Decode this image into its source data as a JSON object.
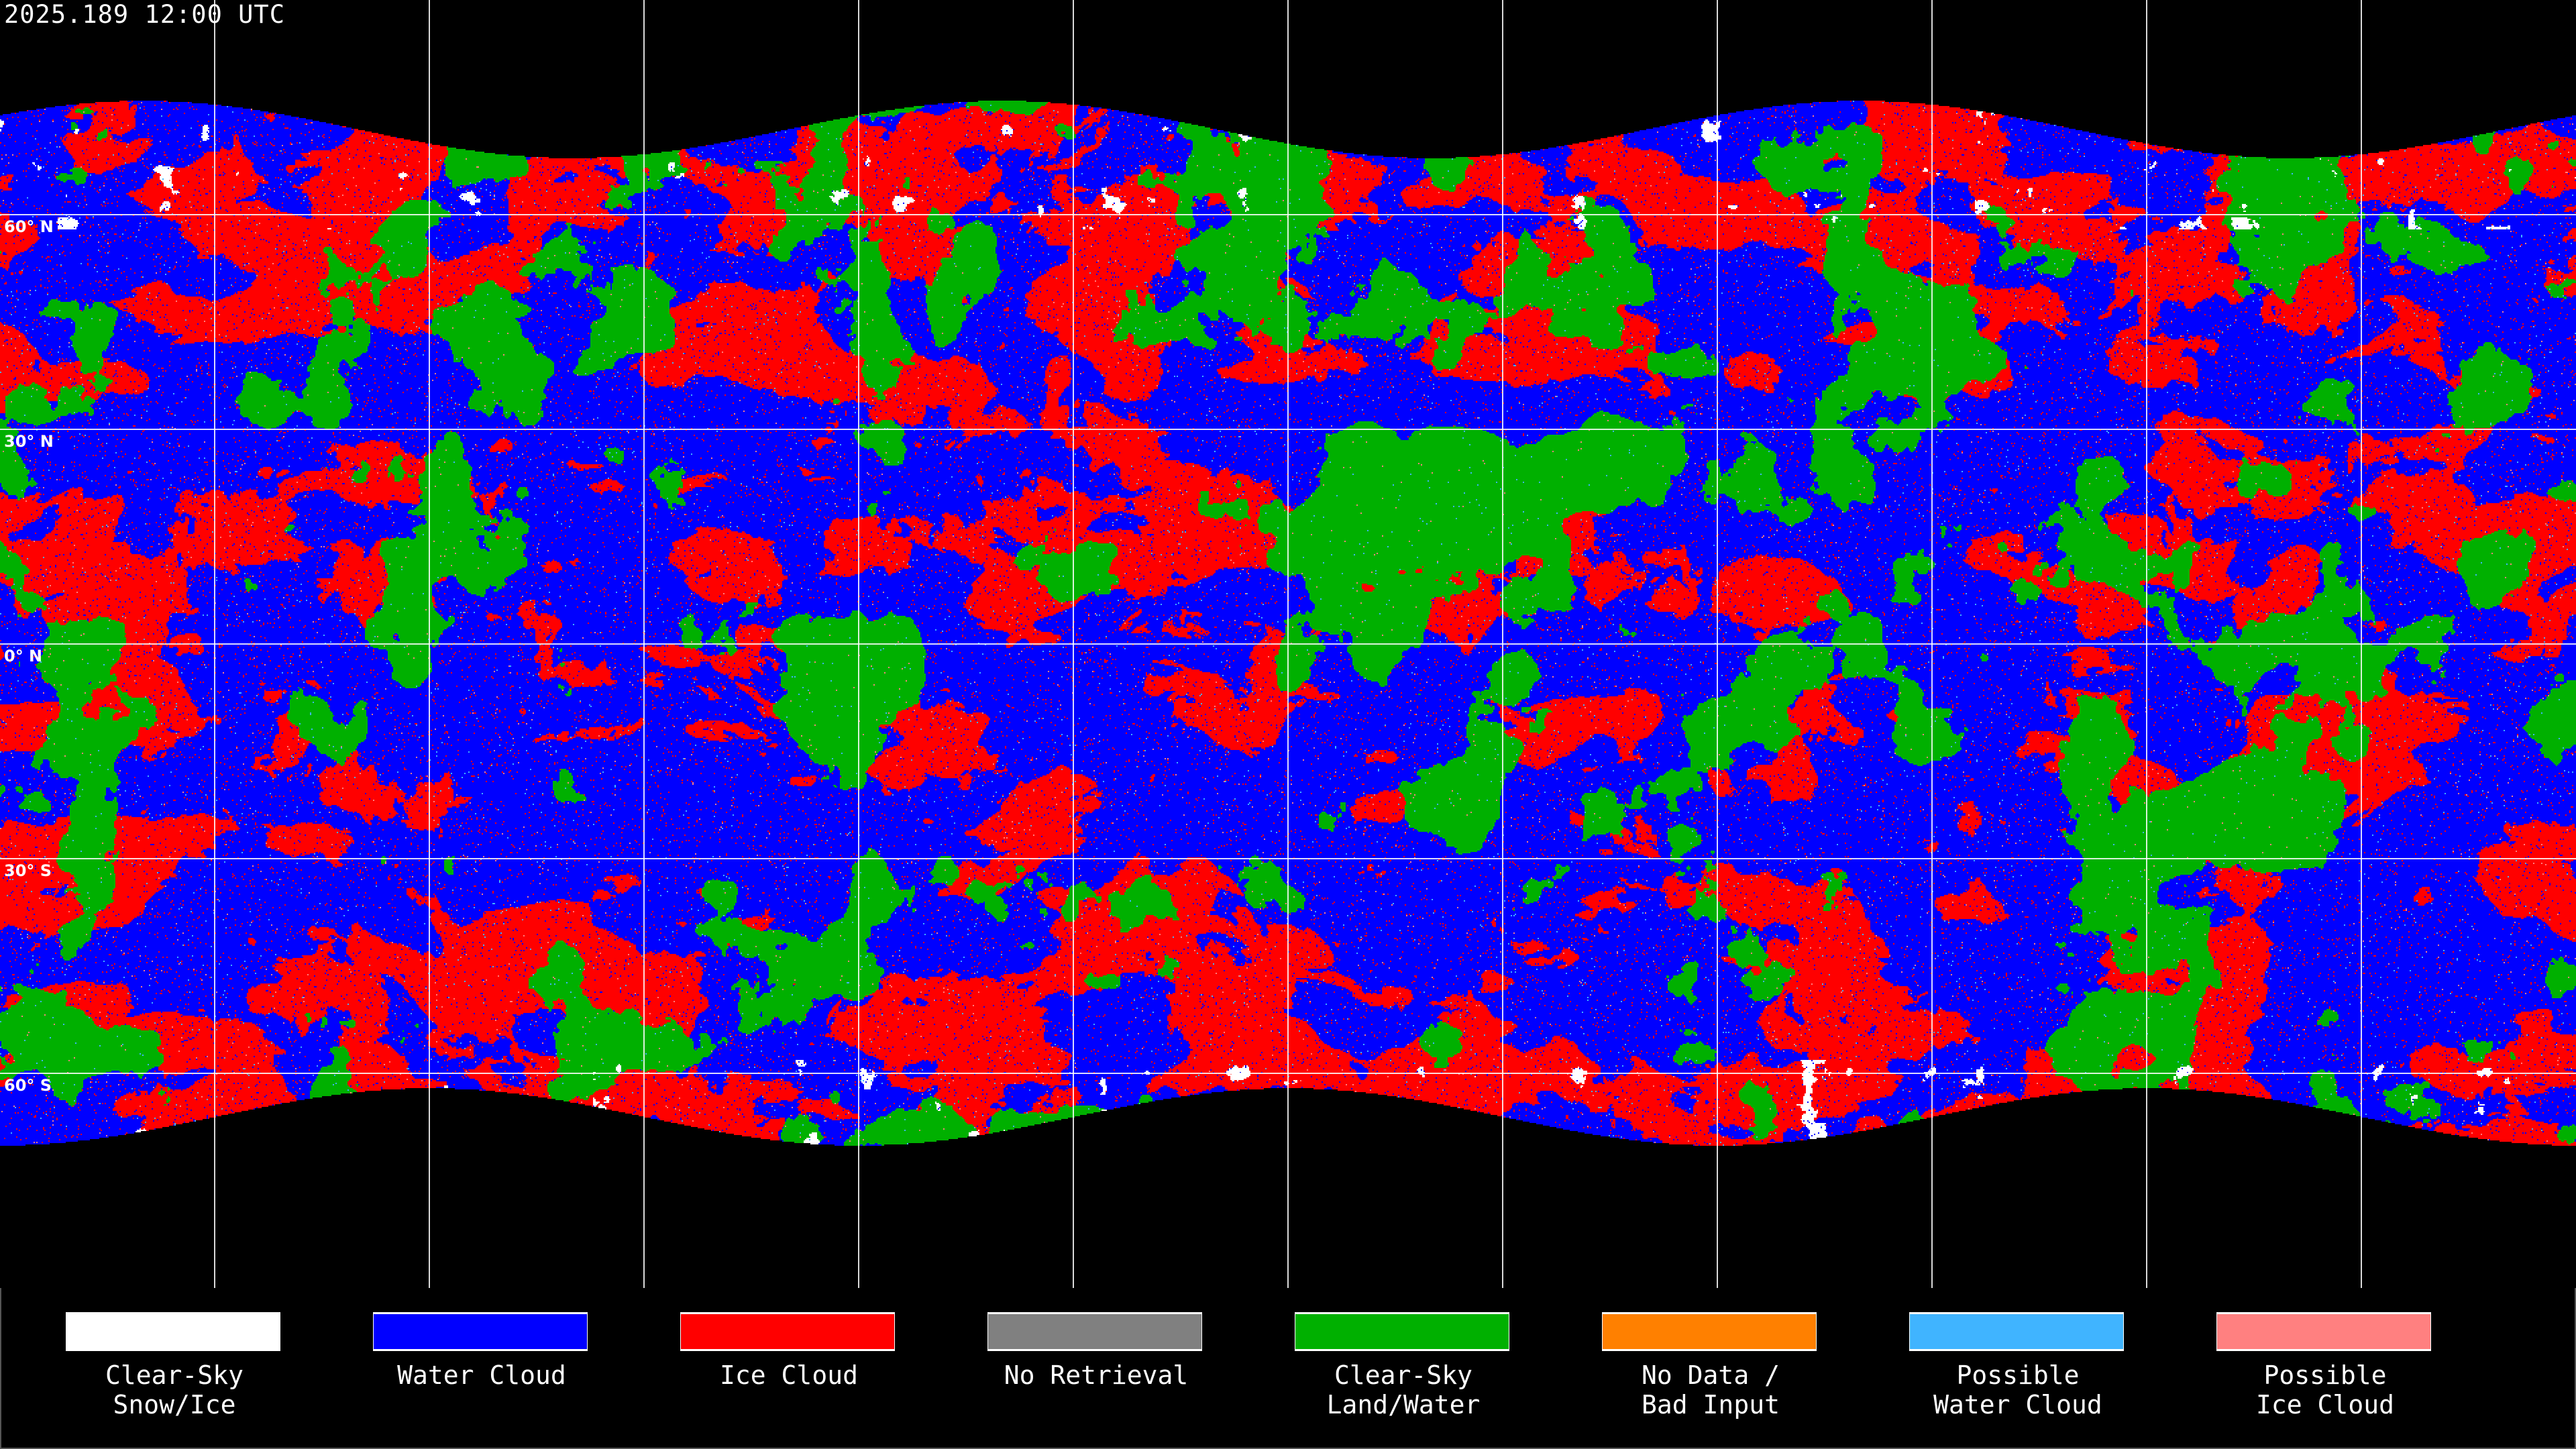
{
  "title": "2025.189 12:00 UTC",
  "map": {
    "projection": "equirectangular",
    "grid_spacing_degrees": 30,
    "lat_labels": [
      "60° N",
      "30° N",
      "0° N",
      "30° S",
      "60° S"
    ],
    "lat_values": [
      60,
      30,
      0,
      -30,
      -60
    ]
  },
  "legend": [
    {
      "label": "Clear-Sky\nSnow/Ice",
      "color": "#ffffff"
    },
    {
      "label": "Water Cloud",
      "color": "#0000ff"
    },
    {
      "label": "Ice Cloud",
      "color": "#ff0000"
    },
    {
      "label": "No Retrieval",
      "color": "#808080"
    },
    {
      "label": "Clear-Sky\nLand/Water",
      "color": "#00b000"
    },
    {
      "label": "No Data /\nBad Input",
      "color": "#ff8000"
    },
    {
      "label": "Possible\nWater Cloud",
      "color": "#40b4ff"
    },
    {
      "label": "Possible\nIce Cloud",
      "color": "#ff8080"
    }
  ]
}
